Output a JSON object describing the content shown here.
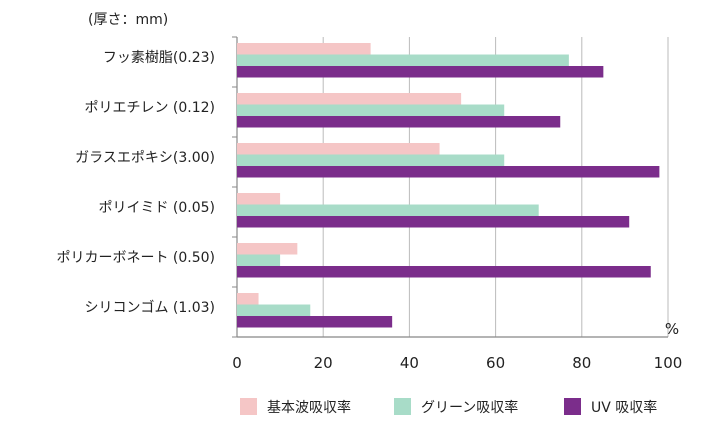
{
  "chart_data": {
    "type": "bar",
    "orientation": "horizontal",
    "unit_label": "(厚さ：mm)",
    "xlabel": "%",
    "xlim": [
      0,
      100
    ],
    "xticks": [
      0,
      20,
      40,
      60,
      80,
      100
    ],
    "grid": true,
    "legend_position": "bottom-right",
    "categories": [
      "フッ素樹脂(0.23)",
      "ポリエチレン (0.12)",
      "ガラスエポキシ(3.00)",
      "ポリイミド (0.05)",
      "ポリカーボネート (0.50)",
      "シリコンゴム (1.03)"
    ],
    "series": [
      {
        "name": "基本波吸収率",
        "color": "#f5c6c6",
        "values": [
          31,
          52,
          47,
          10,
          14,
          5
        ]
      },
      {
        "name": "グリーン吸収率",
        "color": "#a8dcc8",
        "values": [
          77,
          62,
          62,
          70,
          10,
          17
        ]
      },
      {
        "name": "UV 吸収率",
        "color": "#7b2d8b",
        "values": [
          85,
          75,
          98,
          91,
          96,
          36
        ]
      }
    ]
  }
}
